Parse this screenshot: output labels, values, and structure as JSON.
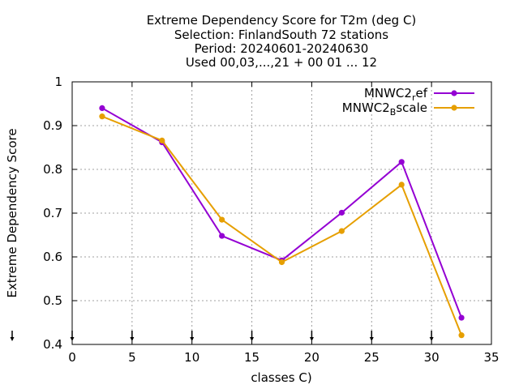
{
  "chart_data": {
    "type": "line",
    "title_lines": [
      "Extreme Dependency Score  for T2m (deg C)",
      "Selection: FinlandSouth     72 stations",
      "Period: 20240601-20240630",
      "Used 00,03,...,21 + 00 01 ... 12"
    ],
    "xlabel": "classes C)",
    "ylabel": "Extreme Dependency Score",
    "xlim": [
      0,
      35
    ],
    "ylim": [
      0.4,
      1
    ],
    "x_ticks": [
      0,
      5,
      10,
      15,
      20,
      25,
      30,
      35
    ],
    "x_tick_labels": [
      "0",
      "5",
      "10",
      "15",
      "20",
      "25",
      "30",
      "35"
    ],
    "y_ticks": [
      0.4,
      0.5,
      0.6,
      0.7,
      0.8,
      0.9,
      1.0
    ],
    "y_tick_labels": [
      "0.4",
      "0.5",
      "0.6",
      "0.7",
      "0.8",
      "0.9",
      "1"
    ],
    "grid": true,
    "legend_position": "top-right",
    "x": [
      2.5,
      7.5,
      12.5,
      17.5,
      22.5,
      27.5,
      32.5
    ],
    "class_markers_x": [
      0,
      5,
      10,
      15,
      20,
      25,
      30
    ],
    "series": [
      {
        "name_main": "MNWC2",
        "name_sub": "r",
        "name_rest": "ef",
        "color": "#9400d3",
        "values": [
          0.94,
          0.862,
          0.648,
          0.592,
          0.701,
          0.817,
          0.461
        ]
      },
      {
        "name_main": "MNWC2",
        "name_sub": "B",
        "name_rest": "scale",
        "color": "#e69f00",
        "values": [
          0.921,
          0.866,
          0.685,
          0.588,
          0.659,
          0.765,
          0.421
        ]
      }
    ]
  }
}
